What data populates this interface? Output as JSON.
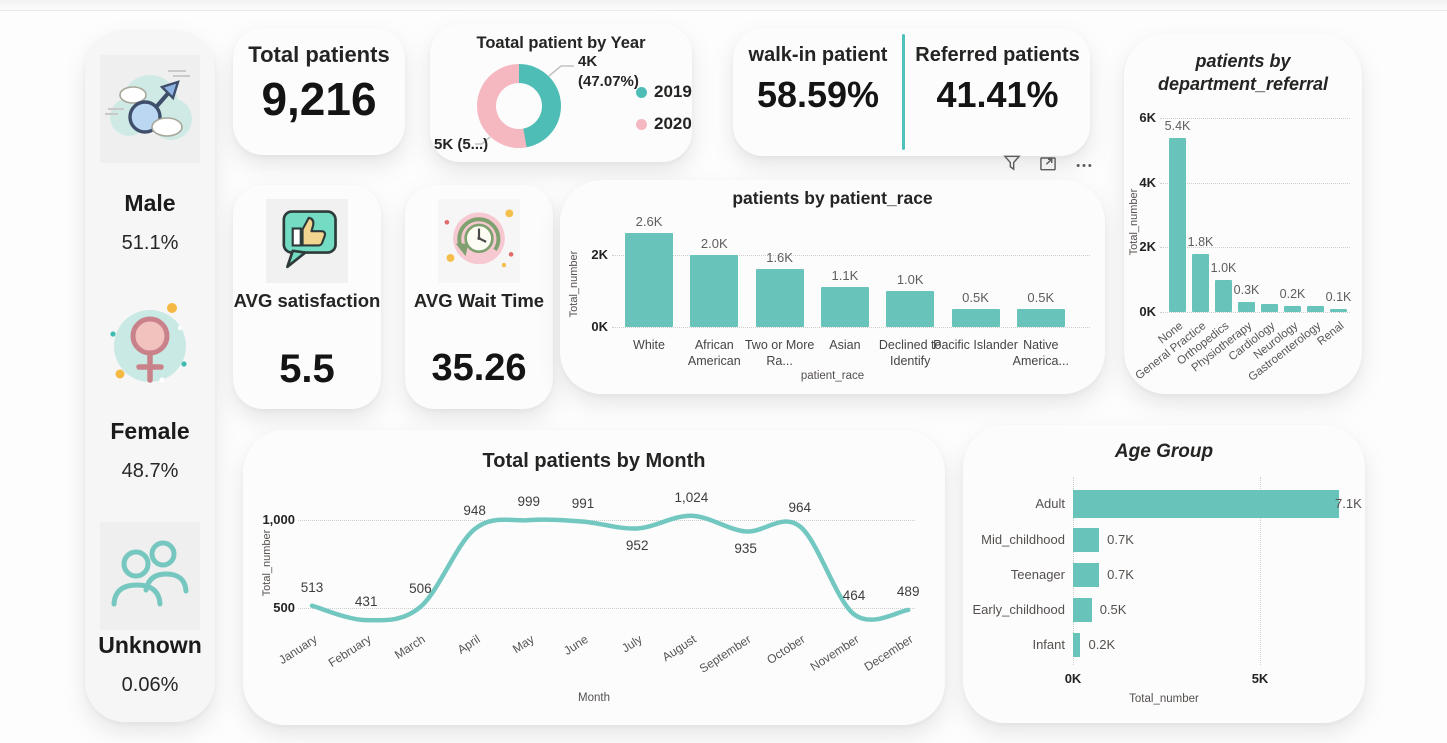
{
  "colors": {
    "teal_bar": "#68C3BB",
    "teal_line": "#72C8C0",
    "donut_teal": "#4EBDB5",
    "donut_pink": "#F5B8C1",
    "divider_teal": "#4FC3BB"
  },
  "sidebar": {
    "groups": [
      {
        "icon": "male-icon",
        "label": "Male",
        "value": "51.1%"
      },
      {
        "icon": "female-icon",
        "label": "Female",
        "value": "48.7%"
      },
      {
        "icon": "people-icon",
        "label": "Unknown",
        "value": "0.06%"
      }
    ]
  },
  "kpis": {
    "total_patients": {
      "title": "Total patients",
      "value": "9,216"
    },
    "walk_in": {
      "title": "walk-in patient",
      "value": "58.59%"
    },
    "referred": {
      "title": "Referred patients",
      "value": "41.41%"
    },
    "avg_satisfaction": {
      "title": "AVG satisfaction",
      "value": "5.5"
    },
    "avg_wait_time": {
      "title": "AVG Wait Time",
      "value": "35.26"
    }
  },
  "chart_data": [
    {
      "id": "year_donut",
      "type": "pie",
      "title": "Toatal patient by Year",
      "legend_position": "right",
      "slices": [
        {
          "legend": "2019",
          "value_pct": 47.07,
          "callout_line1": "4K",
          "callout_line2": "(47.07%)",
          "color": "#4EBDB5"
        },
        {
          "legend": "2020",
          "value_pct": 52.93,
          "callout_line1": "5K (5...)",
          "callout_line2": "",
          "color": "#F5B8C1"
        }
      ]
    },
    {
      "id": "race_bar",
      "type": "bar",
      "title": "patients by patient_race",
      "categories": [
        "White",
        "African American",
        "Two or More Ra...",
        "Asian",
        "Declined to Identify",
        "Pacific Islander",
        "Native America..."
      ],
      "values": [
        2600,
        2000,
        1600,
        1100,
        1000,
        500,
        500
      ],
      "labels": [
        "2.6K",
        "2.0K",
        "1.6K",
        "1.1K",
        "1.0K",
        "0.5K",
        "0.5K"
      ],
      "xlabel": "patient_race",
      "ylabel": "Total_number",
      "ylim": [
        0,
        2800
      ],
      "grid": true,
      "yticks": [
        {
          "v": 0,
          "label": "0K"
        },
        {
          "v": 2000,
          "label": "2K"
        }
      ]
    },
    {
      "id": "dept_bar",
      "type": "bar",
      "title": "patients by department_referral",
      "categories": [
        "None",
        "General Practice",
        "Orthopedics",
        "Physiotherapy",
        "Cardiology",
        "Neurology",
        "Gastroenterology",
        "Renal"
      ],
      "values": [
        5400,
        1800,
        1000,
        300,
        250,
        200,
        200,
        100
      ],
      "labels": [
        "5.4K",
        "1.8K",
        "1.0K",
        "0.3K",
        "",
        "0.2K",
        "",
        "0.1K"
      ],
      "xlabel": "",
      "ylabel": "Total_number",
      "ylim": [
        0,
        6000
      ],
      "grid": true,
      "yticks": [
        {
          "v": 0,
          "label": "0K"
        },
        {
          "v": 2000,
          "label": "2K"
        },
        {
          "v": 4000,
          "label": "4K"
        },
        {
          "v": 6000,
          "label": "6K"
        }
      ]
    },
    {
      "id": "month_line",
      "type": "line",
      "title": "Total patients by Month",
      "categories": [
        "January",
        "February",
        "March",
        "April",
        "May",
        "June",
        "July",
        "August",
        "September",
        "October",
        "November",
        "December"
      ],
      "values": [
        513,
        431,
        506,
        948,
        999,
        991,
        952,
        1024,
        935,
        964,
        464,
        489
      ],
      "labels": [
        "513",
        "431",
        "506",
        "948",
        "999",
        "991",
        "952",
        "1,024",
        "935",
        "964",
        "464",
        "489"
      ],
      "label_below": [
        false,
        false,
        false,
        false,
        false,
        false,
        true,
        false,
        true,
        false,
        false,
        false
      ],
      "xlabel": "Month",
      "ylabel": "Total_number",
      "ylim": [
        380,
        1100
      ],
      "grid": true,
      "yticks": [
        {
          "v": 500,
          "label": "500"
        },
        {
          "v": 1000,
          "label": "1,000"
        }
      ]
    },
    {
      "id": "age_hbar",
      "type": "bar",
      "title": "Age Group",
      "orientation": "horizontal",
      "categories": [
        "Adult",
        "Mid_childhood",
        "Teenager",
        "Early_childhood",
        "Infant"
      ],
      "values": [
        7100,
        700,
        700,
        500,
        200
      ],
      "labels": [
        "7.1K",
        "0.7K",
        "0.7K",
        "0.5K",
        "0.2K"
      ],
      "xlabel": "Total_number",
      "ylabel": "",
      "xlim": [
        0,
        7800
      ],
      "grid": true,
      "xticks": [
        {
          "v": 0,
          "label": "0K"
        },
        {
          "v": 5000,
          "label": "5K"
        }
      ]
    }
  ]
}
